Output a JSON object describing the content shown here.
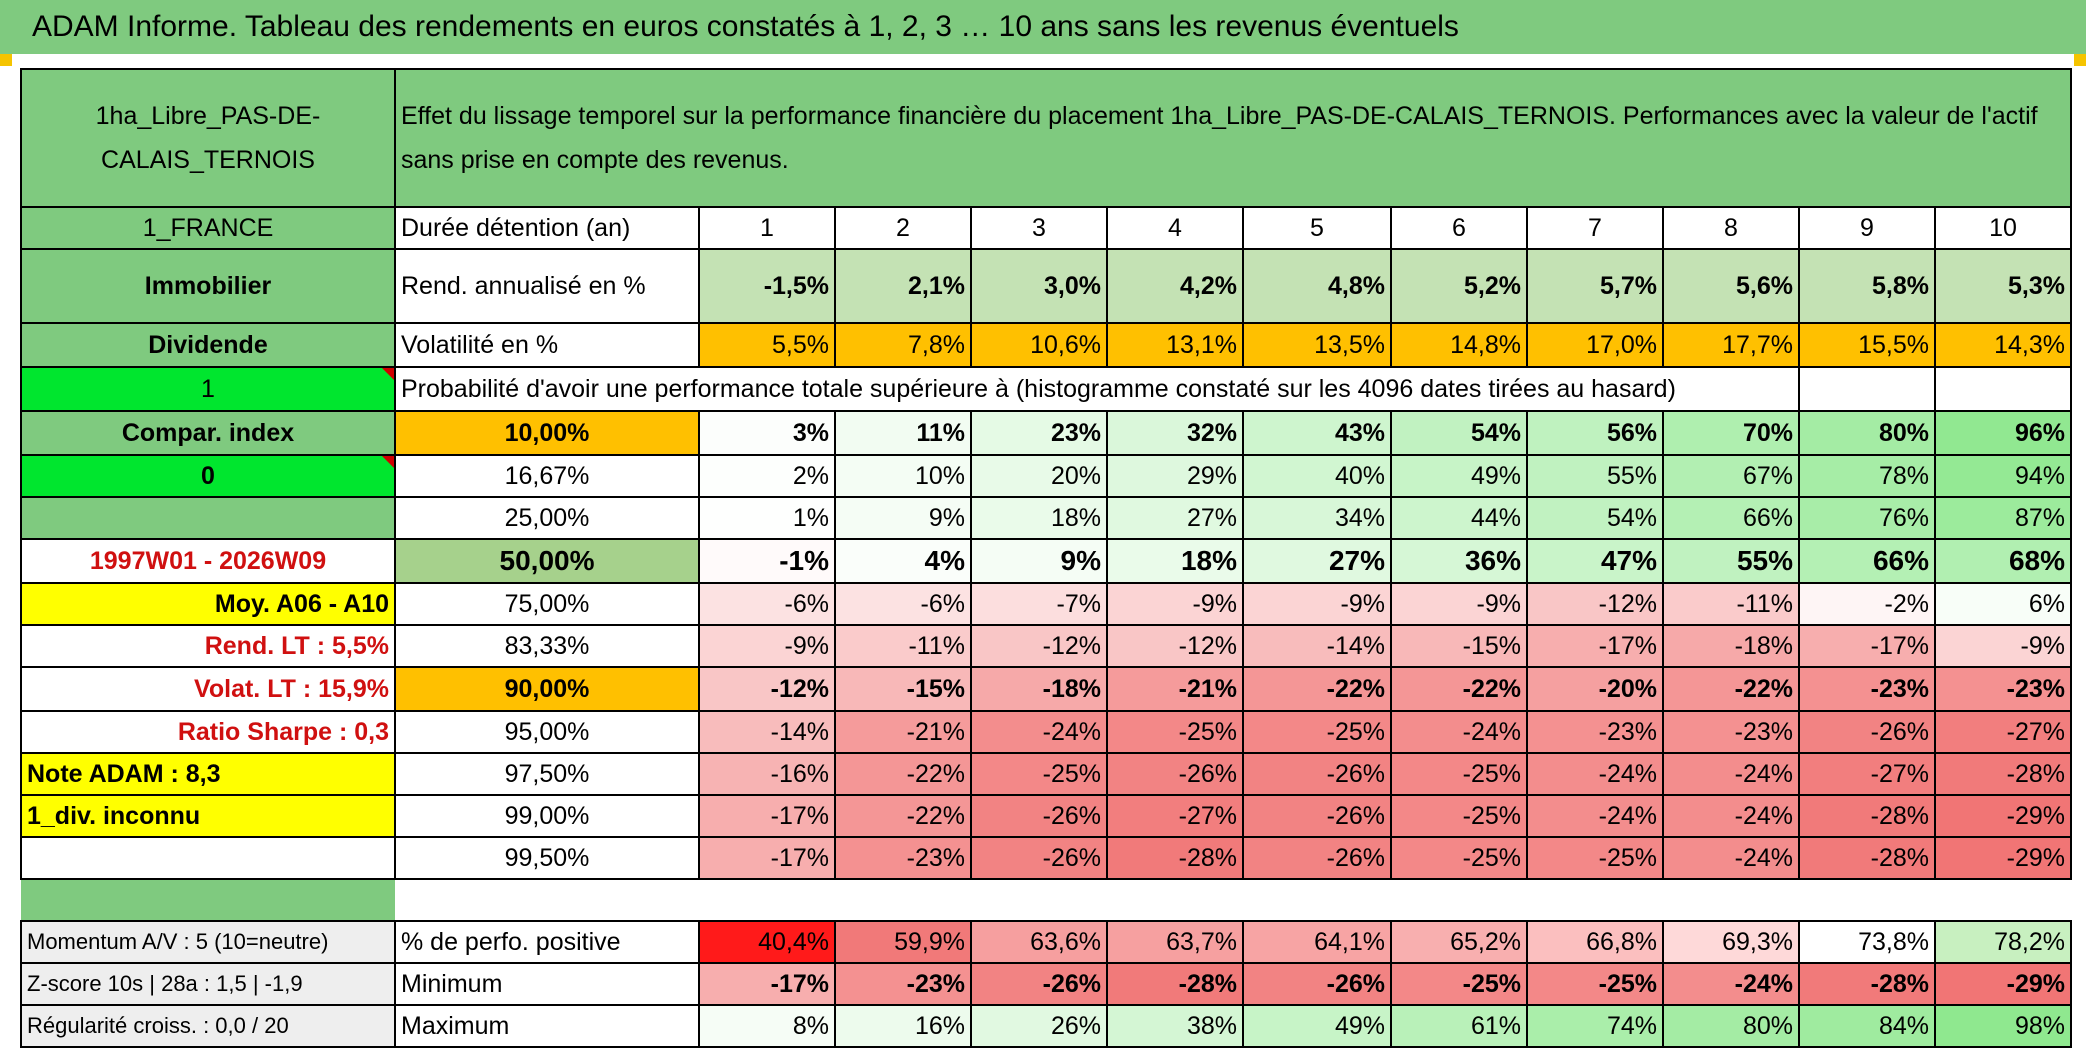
{
  "banner": {
    "title": "ADAM Informe. Tableau des rendements en euros constatés à 1, 2, 3 … 10 ans sans les revenus éventuels"
  },
  "colors": {
    "header_green": "#7fca7f",
    "bright_green": "#00e62e",
    "yellow": "#ffff00",
    "orange": "#ffc000",
    "label_red": "#d01010"
  },
  "sheet": {
    "asset_name": "1ha_Libre_PAS-DE-CALAIS_TERNOIS",
    "description": "Effet du lissage temporel sur la performance financière du placement 1ha_Libre_PAS-DE-CALAIS_TERNOIS. Performances avec la valeur de l'actif sans prise en compte des revenus.",
    "left": {
      "country": "1_FRANCE",
      "category": "Immobilier",
      "dividend_label": "Dividende",
      "dividend_value": "1",
      "compar_index": "Compar. index",
      "compar_value": "0",
      "period": "1997W01 - 2026W09",
      "moy": "Moy. A06 - A10",
      "rend_lt": "Rend. LT :   5,5%",
      "volat_lt": "Volat. LT :   15,9%",
      "sharpe": "Ratio Sharpe :    0,3",
      "note": "Note ADAM : 8,3",
      "div": "1_div. inconnu",
      "momentum": "Momentum A/V : 5 (10=neutre)",
      "zscore": "Z-score 10s | 28a : 1,5 | -1,9",
      "regularite": "Régularité croiss. : 0,0 / 20"
    },
    "durations_label": "Durée détention (an)",
    "durations": [
      "1",
      "2",
      "3",
      "4",
      "5",
      "6",
      "7",
      "8",
      "9",
      "10"
    ],
    "rend_label": "Rend. annualisé en %",
    "rend": [
      "-1,5%",
      "2,1%",
      "3,0%",
      "4,2%",
      "4,8%",
      "5,2%",
      "5,7%",
      "5,6%",
      "5,8%",
      "5,3%"
    ],
    "vol_label": "Volatilité en %",
    "vol": [
      "5,5%",
      "7,8%",
      "10,6%",
      "13,1%",
      "13,5%",
      "14,8%",
      "17,0%",
      "17,7%",
      "15,5%",
      "14,3%"
    ],
    "prob_title": "Probabilité d'avoir une performance totale supérieure à (histogramme constaté sur les 4096 dates tirées au hasard)",
    "quantiles": [
      {
        "label": "10,00%",
        "values": [
          "3%",
          "11%",
          "23%",
          "32%",
          "43%",
          "54%",
          "56%",
          "70%",
          "80%",
          "96%"
        ]
      },
      {
        "label": "16,67%",
        "values": [
          "2%",
          "10%",
          "20%",
          "29%",
          "40%",
          "49%",
          "55%",
          "67%",
          "78%",
          "94%"
        ]
      },
      {
        "label": "25,00%",
        "values": [
          "1%",
          "9%",
          "18%",
          "27%",
          "34%",
          "44%",
          "54%",
          "66%",
          "76%",
          "87%"
        ]
      },
      {
        "label": "50,00%",
        "values": [
          "-1%",
          "4%",
          "9%",
          "18%",
          "27%",
          "36%",
          "47%",
          "55%",
          "66%",
          "68%"
        ]
      },
      {
        "label": "75,00%",
        "values": [
          "-6%",
          "-6%",
          "-7%",
          "-9%",
          "-9%",
          "-9%",
          "-12%",
          "-11%",
          "-2%",
          "6%"
        ]
      },
      {
        "label": "83,33%",
        "values": [
          "-9%",
          "-11%",
          "-12%",
          "-12%",
          "-14%",
          "-15%",
          "-17%",
          "-18%",
          "-17%",
          "-9%"
        ]
      },
      {
        "label": "90,00%",
        "values": [
          "-12%",
          "-15%",
          "-18%",
          "-21%",
          "-22%",
          "-22%",
          "-20%",
          "-22%",
          "-23%",
          "-23%"
        ]
      },
      {
        "label": "95,00%",
        "values": [
          "-14%",
          "-21%",
          "-24%",
          "-25%",
          "-25%",
          "-24%",
          "-23%",
          "-23%",
          "-26%",
          "-27%"
        ]
      },
      {
        "label": "97,50%",
        "values": [
          "-16%",
          "-22%",
          "-25%",
          "-26%",
          "-26%",
          "-25%",
          "-24%",
          "-24%",
          "-27%",
          "-28%"
        ]
      },
      {
        "label": "99,00%",
        "values": [
          "-17%",
          "-22%",
          "-26%",
          "-27%",
          "-26%",
          "-25%",
          "-24%",
          "-24%",
          "-28%",
          "-29%"
        ]
      },
      {
        "label": "99,50%",
        "values": [
          "-17%",
          "-23%",
          "-26%",
          "-28%",
          "-26%",
          "-25%",
          "-25%",
          "-24%",
          "-28%",
          "-29%"
        ]
      }
    ],
    "bottom": [
      {
        "label": "% de perfo. positive",
        "values": [
          "40,4%",
          "59,9%",
          "63,6%",
          "63,7%",
          "64,1%",
          "65,2%",
          "66,8%",
          "69,3%",
          "73,8%",
          "78,2%"
        ]
      },
      {
        "label": "Minimum",
        "values": [
          "-17%",
          "-23%",
          "-26%",
          "-28%",
          "-26%",
          "-25%",
          "-25%",
          "-24%",
          "-28%",
          "-29%"
        ]
      },
      {
        "label": "Maximum",
        "values": [
          "8%",
          "16%",
          "26%",
          "38%",
          "49%",
          "61%",
          "74%",
          "80%",
          "84%",
          "98%"
        ]
      }
    ]
  }
}
